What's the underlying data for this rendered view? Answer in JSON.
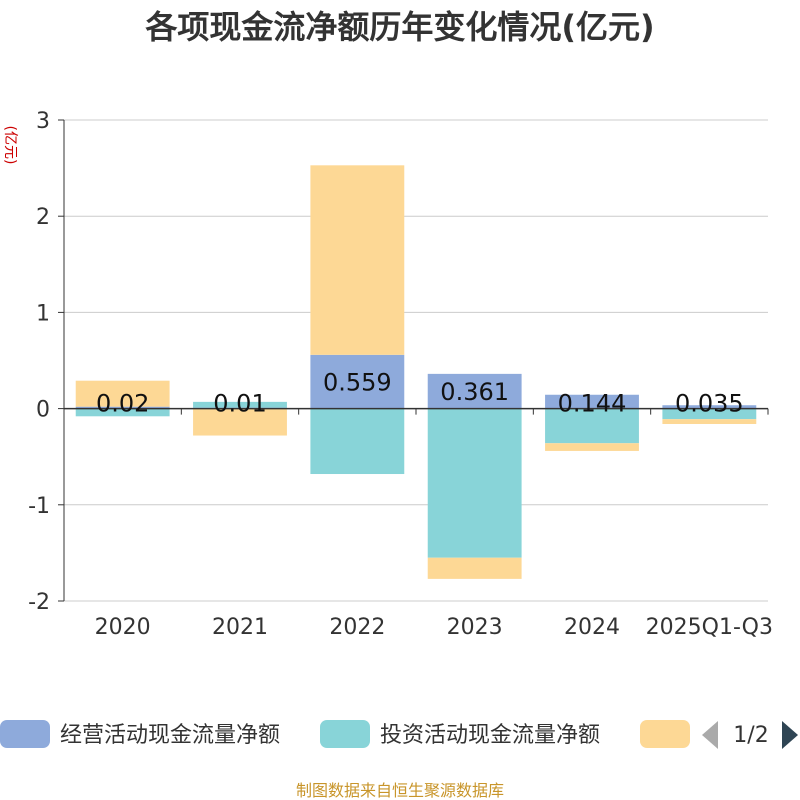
{
  "chart_data": {
    "type": "bar",
    "stacked": true,
    "title": "各项现金流净额历年变化情况(亿元)",
    "ylabel": "(亿元)",
    "categories": [
      "2020",
      "2021",
      "2022",
      "2023",
      "2024",
      "2025Q1-Q3"
    ],
    "ylim": [
      -2,
      3
    ],
    "yticks": [
      3,
      2,
      1,
      0,
      -1,
      -2
    ],
    "grid": true,
    "series": [
      {
        "name": "经营活动现金流量净额",
        "color": "#8eaadb",
        "values": [
          0.02,
          0.01,
          0.559,
          0.361,
          0.144,
          0.035
        ],
        "labels": [
          "0.02",
          "0.01",
          "0.559",
          "0.361",
          "0.144",
          "0.035"
        ]
      },
      {
        "name": "投资活动现金流量净额",
        "color": "#88d4d8",
        "values": [
          -0.08,
          0.06,
          -0.68,
          -1.55,
          -0.36,
          -0.11
        ]
      },
      {
        "name": "",
        "color": "#fdd895",
        "values": [
          0.27,
          -0.28,
          1.97,
          -0.22,
          -0.08,
          -0.05
        ]
      }
    ],
    "legend_position": "bottom",
    "legend_page": "1/2"
  },
  "source_note": "制图数据来自恒生聚源数据库"
}
